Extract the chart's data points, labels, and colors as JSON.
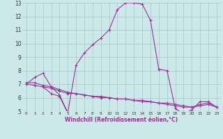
{
  "xlabel": "Windchill (Refroidissement éolien,°C)",
  "bg_color": "#cce8e8",
  "grid_color": "#aacccc",
  "line_color": "#993399",
  "xlim": [
    -0.5,
    23.5
  ],
  "ylim": [
    5,
    13
  ],
  "xticks": [
    0,
    1,
    2,
    3,
    4,
    5,
    6,
    7,
    8,
    9,
    10,
    11,
    12,
    13,
    14,
    15,
    16,
    17,
    18,
    19,
    20,
    21,
    22,
    23
  ],
  "yticks": [
    5,
    6,
    7,
    8,
    9,
    10,
    11,
    12,
    13
  ],
  "curve1_x": [
    0,
    1,
    2,
    3,
    4,
    5,
    6,
    7,
    8,
    9,
    10,
    11,
    12,
    13,
    14,
    15,
    16,
    17,
    18,
    19,
    20,
    21,
    22,
    23
  ],
  "curve1_y": [
    7.0,
    7.5,
    7.8,
    6.8,
    6.2,
    4.9,
    8.4,
    9.3,
    9.9,
    10.4,
    11.0,
    12.5,
    13.0,
    13.0,
    12.9,
    11.7,
    8.1,
    8.0,
    5.2,
    4.8,
    5.1,
    5.7,
    5.7,
    5.3
  ],
  "curve2_x": [
    0,
    1,
    2,
    3,
    4,
    5,
    6,
    7,
    8,
    9,
    10,
    11,
    12,
    13,
    14,
    15,
    16,
    17,
    18,
    19,
    20,
    21,
    22,
    23
  ],
  "curve2_y": [
    7.0,
    6.9,
    6.8,
    6.7,
    6.5,
    6.3,
    6.3,
    6.2,
    6.1,
    6.0,
    6.0,
    5.9,
    5.9,
    5.8,
    5.7,
    5.7,
    5.6,
    5.5,
    5.4,
    5.3,
    5.3,
    5.4,
    5.5,
    5.3
  ],
  "curve3_x": [
    0,
    1,
    2,
    3,
    4,
    5,
    6,
    7,
    8,
    9,
    10,
    11,
    12,
    13,
    14,
    15,
    16,
    17,
    18,
    19,
    20,
    21,
    22,
    23
  ],
  "curve3_y": [
    7.1,
    7.1,
    6.9,
    6.8,
    6.6,
    6.4,
    6.3,
    6.2,
    6.1,
    6.1,
    6.0,
    5.9,
    5.9,
    5.8,
    5.8,
    5.7,
    5.6,
    5.6,
    5.5,
    5.4,
    5.3,
    5.5,
    5.6,
    5.3
  ],
  "curve4_x": [
    2,
    3,
    4,
    5
  ],
  "curve4_y": [
    6.8,
    6.3,
    6.1,
    4.85
  ]
}
